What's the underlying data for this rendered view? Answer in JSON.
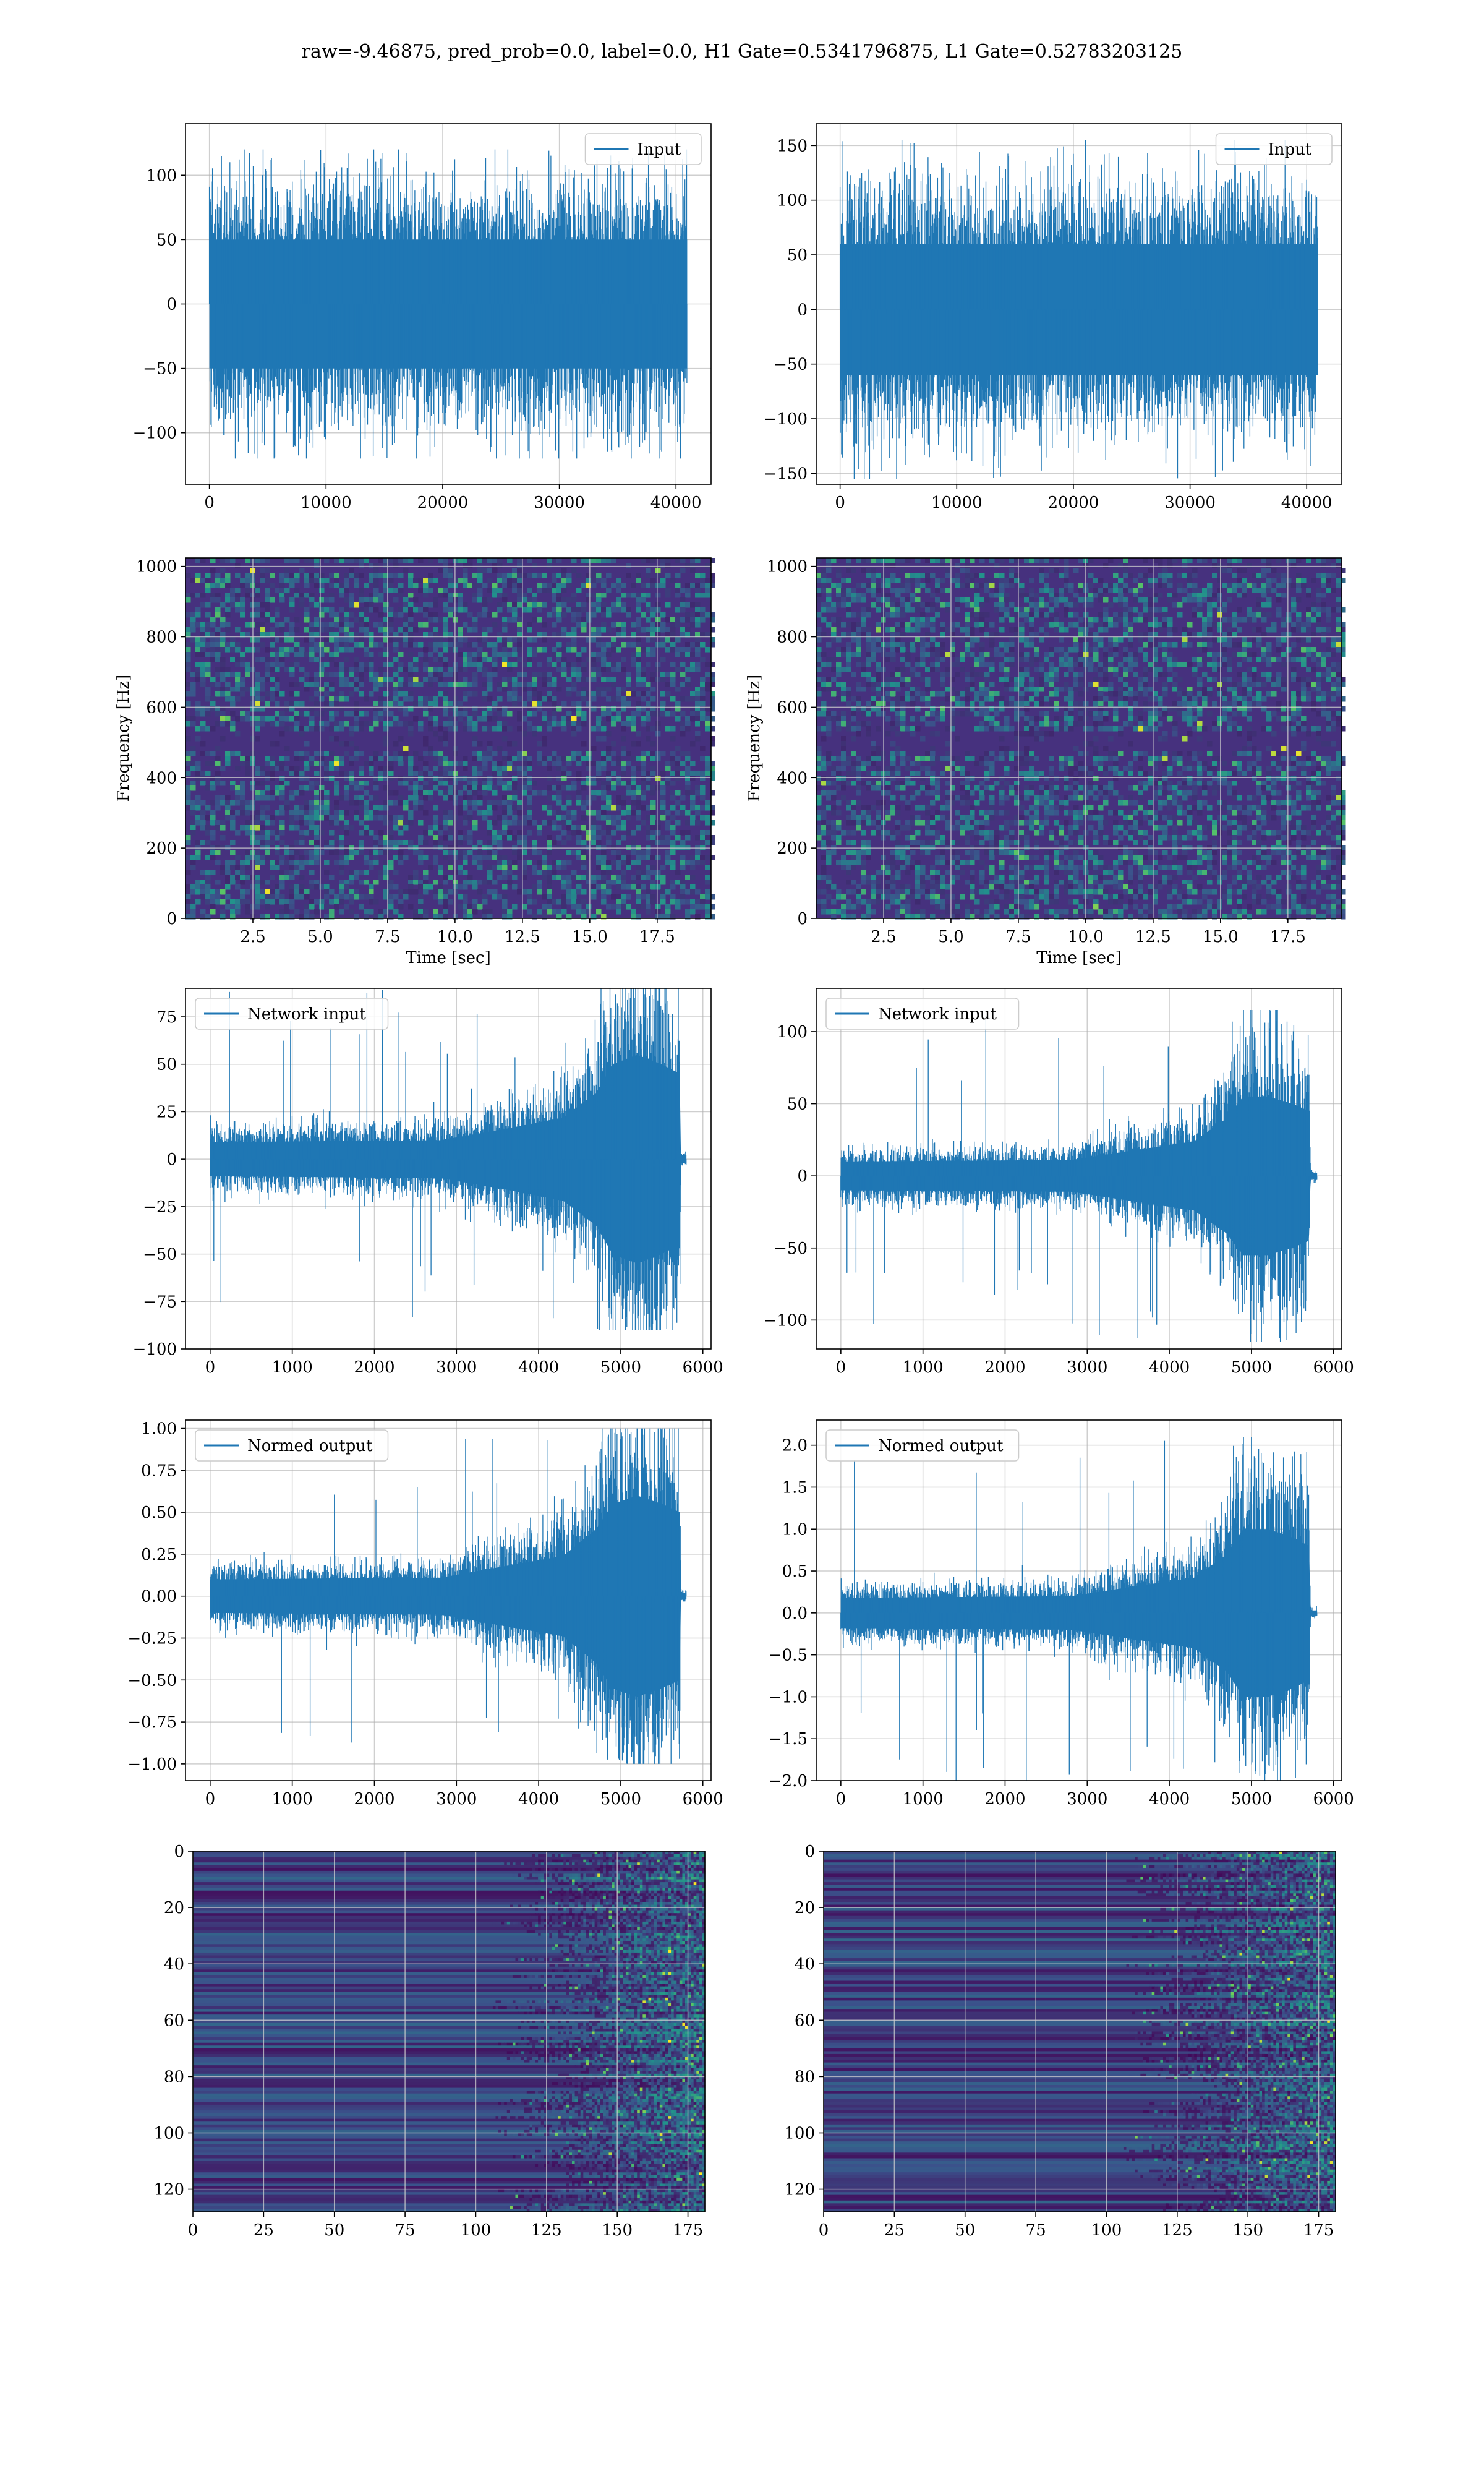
{
  "figure_title": "raw=-9.46875, pred_prob=0.0, label=0.0, H1 Gate=0.5341796875, L1 Gate=0.52783203125",
  "colors": {
    "series": "#1f77b4",
    "grid": "#b0b0b0",
    "spine": "#000000",
    "heat_low": "#440154",
    "heat_high": "#fde725"
  },
  "chart_data": [
    {
      "id": "h1-input",
      "type": "line",
      "legend": "Input",
      "legend_loc": "upper right",
      "grid": true,
      "xlim": [
        -2048,
        43008
      ],
      "ylim": [
        -140,
        140
      ],
      "xticks": [
        0,
        10000,
        20000,
        30000,
        40000
      ],
      "yticks": [
        -100,
        -50,
        0,
        50,
        100
      ],
      "signal": {
        "n": 40960,
        "stationary": true,
        "envelope": [
          [
            0,
            50
          ],
          [
            40960,
            50
          ]
        ],
        "peak_abs": 120
      }
    },
    {
      "id": "l1-input",
      "type": "line",
      "legend": "Input",
      "legend_loc": "upper right",
      "grid": true,
      "xlim": [
        -2048,
        43008
      ],
      "ylim": [
        -160,
        170
      ],
      "xticks": [
        0,
        10000,
        20000,
        30000,
        40000
      ],
      "yticks": [
        -150,
        -100,
        -50,
        0,
        50,
        100,
        150
      ],
      "signal": {
        "n": 40960,
        "stationary": true,
        "envelope": [
          [
            0,
            60
          ],
          [
            40960,
            60
          ]
        ],
        "peak_abs": 155
      }
    },
    {
      "id": "h1-spectrogram",
      "type": "heatmap",
      "grid": true,
      "xlim": [
        0,
        19.5
      ],
      "ylim": [
        0,
        1024
      ],
      "xticks": [
        2.5,
        5.0,
        7.5,
        10.0,
        12.5,
        15.0,
        17.5
      ],
      "yticks": [
        0,
        200,
        400,
        600,
        800,
        1000
      ],
      "xlabel": "Time [sec]",
      "ylabel": "Frequency [Hz]",
      "colormap": "viridis"
    },
    {
      "id": "l1-spectrogram",
      "type": "heatmap",
      "grid": true,
      "xlim": [
        0,
        19.5
      ],
      "ylim": [
        0,
        1024
      ],
      "xticks": [
        2.5,
        5.0,
        7.5,
        10.0,
        12.5,
        15.0,
        17.5
      ],
      "yticks": [
        0,
        200,
        400,
        600,
        800,
        1000
      ],
      "xlabel": "Time [sec]",
      "ylabel": "Frequency [Hz]",
      "colormap": "viridis"
    },
    {
      "id": "h1-network-input",
      "type": "line",
      "legend": "Network input",
      "legend_loc": "upper left",
      "grid": true,
      "xlim": [
        -300,
        6100
      ],
      "ylim": [
        -100,
        90
      ],
      "xticks": [
        0,
        1000,
        2000,
        3000,
        4000,
        5000,
        6000
      ],
      "yticks": [
        -100,
        -75,
        -50,
        -25,
        0,
        25,
        50,
        75
      ],
      "signal": {
        "n": 5760,
        "tail_end": 5800,
        "envelope": [
          [
            0,
            9
          ],
          [
            2800,
            10
          ],
          [
            3600,
            16
          ],
          [
            4300,
            22
          ],
          [
            4700,
            35
          ],
          [
            4900,
            50
          ],
          [
            5200,
            55
          ],
          [
            5500,
            50
          ],
          [
            5720,
            45
          ],
          [
            5730,
            2
          ],
          [
            5800,
            2
          ]
        ],
        "peak_abs": 90
      }
    },
    {
      "id": "l1-network-input",
      "type": "line",
      "legend": "Network input",
      "legend_loc": "upper left",
      "grid": true,
      "xlim": [
        -300,
        6100
      ],
      "ylim": [
        -120,
        130
      ],
      "xticks": [
        0,
        1000,
        2000,
        3000,
        4000,
        5000,
        6000
      ],
      "yticks": [
        -100,
        -50,
        0,
        50,
        100
      ],
      "signal": {
        "n": 5760,
        "tail_end": 5800,
        "envelope": [
          [
            0,
            10
          ],
          [
            2800,
            11
          ],
          [
            3600,
            18
          ],
          [
            4300,
            24
          ],
          [
            4700,
            40
          ],
          [
            4900,
            55
          ],
          [
            5200,
            55
          ],
          [
            5500,
            50
          ],
          [
            5700,
            45
          ],
          [
            5720,
            2
          ],
          [
            5800,
            2
          ]
        ],
        "peak_abs": 115
      }
    },
    {
      "id": "h1-normed-output",
      "type": "line",
      "legend": "Normed output",
      "legend_loc": "upper left",
      "grid": true,
      "xlim": [
        -300,
        6100
      ],
      "ylim": [
        -1.1,
        1.05
      ],
      "xticks": [
        0,
        1000,
        2000,
        3000,
        4000,
        5000,
        6000
      ],
      "yticks": [
        -1.0,
        -0.75,
        -0.5,
        -0.25,
        0.0,
        0.25,
        0.5,
        0.75,
        1.0
      ],
      "signal": {
        "n": 5760,
        "tail_end": 5800,
        "envelope": [
          [
            0,
            0.1
          ],
          [
            2800,
            0.11
          ],
          [
            3600,
            0.18
          ],
          [
            4300,
            0.24
          ],
          [
            4700,
            0.4
          ],
          [
            4900,
            0.55
          ],
          [
            5200,
            0.6
          ],
          [
            5500,
            0.55
          ],
          [
            5720,
            0.5
          ],
          [
            5730,
            0.02
          ],
          [
            5800,
            0.02
          ]
        ],
        "peak_abs": 1.0
      }
    },
    {
      "id": "l1-normed-output",
      "type": "line",
      "legend": "Normed output",
      "legend_loc": "upper left",
      "grid": true,
      "xlim": [
        -300,
        6100
      ],
      "ylim": [
        -2.0,
        2.3
      ],
      "xticks": [
        0,
        1000,
        2000,
        3000,
        4000,
        5000,
        6000
      ],
      "yticks": [
        -2.0,
        -1.5,
        -1.0,
        -0.5,
        0.0,
        0.5,
        1.0,
        1.5,
        2.0
      ],
      "signal": {
        "n": 5760,
        "tail_end": 5800,
        "envelope": [
          [
            0,
            0.18
          ],
          [
            2800,
            0.2
          ],
          [
            3600,
            0.32
          ],
          [
            4300,
            0.42
          ],
          [
            4700,
            0.7
          ],
          [
            4900,
            1.0
          ],
          [
            5200,
            1.0
          ],
          [
            5500,
            0.9
          ],
          [
            5700,
            0.8
          ],
          [
            5720,
            0.03
          ],
          [
            5800,
            0.03
          ]
        ],
        "peak_abs": 2.1
      }
    },
    {
      "id": "h1-activation-map",
      "type": "heatmap",
      "grid": true,
      "xlim": [
        0,
        181
      ],
      "ylim": [
        128,
        0
      ],
      "xticks": [
        0,
        25,
        50,
        75,
        100,
        125,
        150,
        175
      ],
      "yticks": [
        0,
        20,
        40,
        60,
        80,
        100,
        120
      ],
      "active_from": 118,
      "colormap": "viridis"
    },
    {
      "id": "l1-activation-map",
      "type": "heatmap",
      "grid": true,
      "xlim": [
        0,
        181
      ],
      "ylim": [
        128,
        0
      ],
      "xticks": [
        0,
        25,
        50,
        75,
        100,
        125,
        150,
        175
      ],
      "yticks": [
        0,
        20,
        40,
        60,
        80,
        100,
        120
      ],
      "active_from": 118,
      "colormap": "viridis"
    }
  ]
}
